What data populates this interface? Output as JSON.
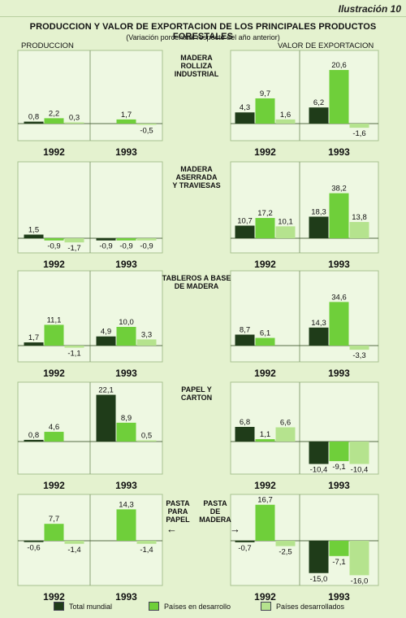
{
  "illustration_label": "Ilustración 10",
  "title": "PRODUCCION Y VALOR DE EXPORTACION DE LOS PRINCIPALES PRODUCTOS FORESTALES",
  "subtitle": "(Variación porcentual respecto del año anterior)",
  "column_headers": {
    "left": "PRODUCCION",
    "right": "VALOR DE EXPORTACION"
  },
  "arrows": {
    "left": "←",
    "right": "→"
  },
  "colors": {
    "total": "#1f3c19",
    "desarrollo": "#6fcf3a",
    "desarrollados": "#b5e38e"
  },
  "legend": [
    {
      "label": "Total mundial",
      "color": "#1f3c19"
    },
    {
      "label": "Países en desarrollo",
      "color": "#6fcf3a"
    },
    {
      "label": "Países desarrollados",
      "color": "#b5e38e"
    }
  ],
  "chart_data": {
    "type": "bar",
    "series_names": [
      "Total mundial",
      "Países en desarrollo",
      "Países desarrollados"
    ],
    "years": [
      "1992",
      "1993"
    ],
    "rows": [
      {
        "product_label": [
          "MADERA",
          "ROLLIZA",
          "INDUSTRIAL"
        ],
        "produccion": {
          "1992": [
            0.8,
            2.2,
            0.3
          ],
          "1993": [
            null,
            1.7,
            -0.5
          ]
        },
        "produccion_labels": {
          "1992": [
            "0,8",
            "2,2",
            "0,3"
          ],
          "1993": [
            "",
            "1,7",
            "-0,5"
          ]
        },
        "exportacion": {
          "1992": [
            4.3,
            9.7,
            1.6
          ],
          "1993": [
            6.2,
            20.6,
            -1.6
          ]
        },
        "exportacion_labels": {
          "1992": [
            "4,3",
            "9,7",
            "1,6"
          ],
          "1993": [
            "6,2",
            "20,6",
            "-1,6"
          ]
        }
      },
      {
        "product_label": [
          "MADERA",
          "ASERRADA",
          "Y TRAVIESAS"
        ],
        "produccion": {
          "1992": [
            1.5,
            -0.9,
            -1.7
          ],
          "1993": [
            -0.9,
            -0.9,
            -0.9
          ]
        },
        "produccion_labels": {
          "1992": [
            "1,5",
            "-0,9",
            "-1,7"
          ],
          "1993": [
            "-0,9",
            "-0,9",
            "-0,9"
          ]
        },
        "exportacion": {
          "1992": [
            10.7,
            17.2,
            10.1
          ],
          "1993": [
            18.3,
            38.2,
            13.8
          ]
        },
        "exportacion_labels": {
          "1992": [
            "10,7",
            "17,2",
            "10,1"
          ],
          "1993": [
            "18,3",
            "38,2",
            "13,8"
          ]
        }
      },
      {
        "product_label": [
          "TABLEROS A BASE",
          "DE MADERA"
        ],
        "produccion": {
          "1992": [
            1.7,
            11.1,
            -1.1
          ],
          "1993": [
            4.9,
            10.0,
            3.3
          ]
        },
        "produccion_labels": {
          "1992": [
            "1,7",
            "11,1",
            "-1,1"
          ],
          "1993": [
            "4,9",
            "10,0",
            "3,3"
          ]
        },
        "exportacion": {
          "1992": [
            8.7,
            6.1,
            null
          ],
          "1993": [
            14.3,
            34.6,
            -3.3
          ]
        },
        "exportacion_labels": {
          "1992": [
            "8,7",
            "6,1",
            ""
          ],
          "1993": [
            "14,3",
            "34,6",
            "-3,3"
          ]
        }
      },
      {
        "product_label": [
          "PAPEL Y",
          "CARTON"
        ],
        "produccion": {
          "1992": [
            0.8,
            4.6,
            null
          ],
          "1993": [
            22.1,
            8.9,
            0.5
          ]
        },
        "produccion_labels": {
          "1992": [
            "0,8",
            "4,6",
            ""
          ],
          "1993": [
            "22,1",
            "8,9",
            "0,5"
          ]
        },
        "exportacion": {
          "1992": [
            6.8,
            1.1,
            6.6
          ],
          "1993": [
            -10.4,
            -9.1,
            -10.4
          ]
        },
        "exportacion_labels": {
          "1992": [
            "6,8",
            "1,1",
            "6,6"
          ],
          "1993": [
            "-10,4",
            "-9,1",
            "-10,4"
          ]
        }
      },
      {
        "product_label_left": [
          "PASTA",
          "PARA",
          "PAPEL"
        ],
        "product_label_right": [
          "PASTA",
          "DE",
          "MADERA"
        ],
        "produccion": {
          "1992": [
            -0.6,
            7.7,
            -1.4
          ],
          "1993": [
            null,
            14.3,
            -1.4
          ]
        },
        "produccion_labels": {
          "1992": [
            "-0,6",
            "7,7",
            "-1,4"
          ],
          "1993": [
            "",
            "14,3",
            "-1,4"
          ]
        },
        "exportacion": {
          "1992": [
            -0.7,
            16.7,
            -2.5
          ],
          "1993": [
            -15.0,
            -7.1,
            -16.0
          ]
        },
        "exportacion_labels": {
          "1992": [
            "-0,7",
            "16,7",
            "-2,5"
          ],
          "1993": [
            "-15,0",
            "-7,1",
            "-16,0"
          ]
        }
      }
    ]
  }
}
